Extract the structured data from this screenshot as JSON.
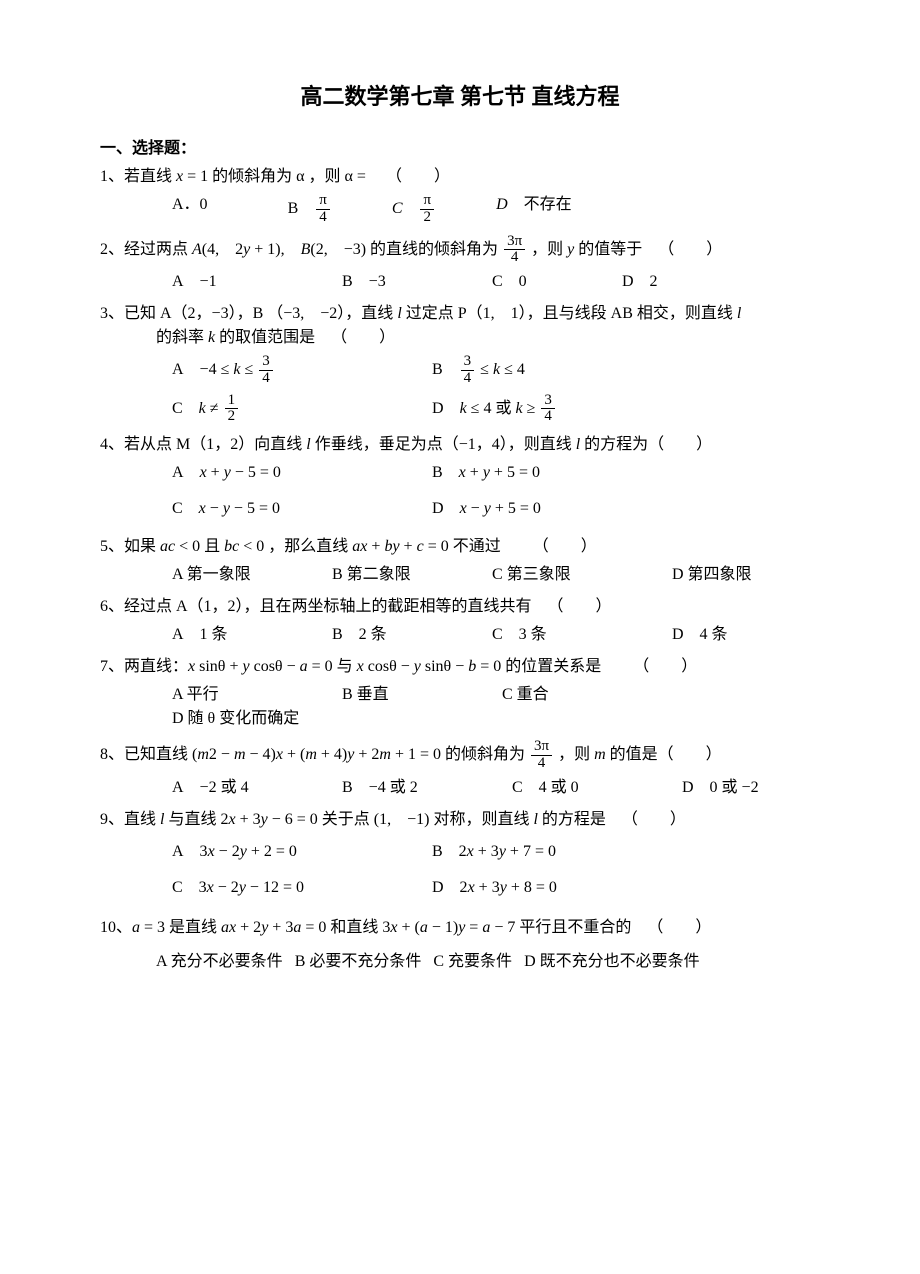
{
  "title": "高二数学第七章 第七节 直线方程",
  "section1_heading": "一、选择题：",
  "q1": {
    "stem": "1、若直线 <span class='it'>x</span> = 1 的倾斜角为 α ，则 α =  （  ）",
    "A": "A．0",
    "B": "B <span class='frac'><span class='n'>π</span><span class='d'>4</span></span>",
    "C": "<span class='it'>C</span> <span class='frac'><span class='n'>π</span><span class='d'>2</span></span>",
    "D": "<span class='it'>D</span> 不存在"
  },
  "q2": {
    "stem": "2、经过两点 <span class='it'>A</span>(4, 2<span class='it'>y</span> + 1), <span class='it'>B</span>(2, −3) 的直线的倾斜角为 <span class='frac'><span class='n'>3π</span><span class='d'>4</span></span> ，则 <span class='it'>y</span> 的值等于 （  ）",
    "A": "A −1",
    "B": "B −3",
    "C": "C 0",
    "D": "D 2"
  },
  "q3": {
    "stem1": "3、已知 A（2，−3），B （−3, −2），直线 <span class='it'>l</span> 过定点 P（1, 1），且与线段 AB 相交，则直线 <span class='it'>l</span>",
    "stem2": "的斜率 <span class='it'>k</span> 的取值范围是 （  ）",
    "A": "A −4 ≤ <span class='it'>k</span> ≤ <span class='frac'><span class='n'>3</span><span class='d'>4</span></span>",
    "B": "B <span class='frac'><span class='n'>3</span><span class='d'>4</span></span> ≤ <span class='it'>k</span> ≤ 4",
    "C": "C <span class='it'>k</span> ≠ <span class='frac'><span class='n'>1</span><span class='d'>2</span></span>",
    "D": "D <span class='it'>k</span> ≤ 4 或 <span class='it'>k</span> ≥ <span class='frac'><span class='n'>3</span><span class='d'>4</span></span>"
  },
  "q4": {
    "stem": "4、若从点 M（1，2）向直线 <span class='it'>l</span> 作垂线，垂足为点（−1，4），则直线 <span class='it'>l</span> 的方程为（  ）",
    "A": "A <span class='it'>x</span> + <span class='it'>y</span> − 5 = 0",
    "B": "B <span class='it'>x</span> + <span class='it'>y</span> + 5 = 0",
    "C": "C <span class='it'>x</span> − <span class='it'>y</span> − 5 = 0",
    "D": "D <span class='it'>x</span> − <span class='it'>y</span> + 5 = 0"
  },
  "q5": {
    "stem": "5、如果 <span class='it'>ac</span> &lt; 0 且 <span class='it'>bc</span> &lt; 0 ，那么直线 <span class='it'>ax</span> + <span class='it'>by</span> + <span class='it'>c</span> = 0 不通过  （  ）",
    "A": "A 第一象限",
    "B": "B 第二象限",
    "C": "C 第三象限",
    "D": "D 第四象限"
  },
  "q6": {
    "stem": "6、经过点 A（1，2），且在两坐标轴上的截距相等的直线共有 （  ）",
    "A": "A 1 条",
    "B": "B 2 条",
    "C": "C 3 条",
    "D": "D 4 条"
  },
  "q7": {
    "stem": "7、两直线：<span class='it'>x</span> sinθ + <span class='it'>y</span> cosθ − <span class='it'>a</span> = 0 与 <span class='it'>x</span> cosθ − <span class='it'>y</span> sinθ − <span class='it'>b</span> = 0 的位置关系是  （  ）",
    "A": "A 平行",
    "B": "B 垂直",
    "C": "C 重合",
    "D": "D 随 θ 变化而确定"
  },
  "q8": {
    "stem": "8、已知直线 (<span class='it'>m</span>2 − <span class='it'>m</span> − 4)<span class='it'>x</span> + (<span class='it'>m</span> + 4)<span class='it'>y</span> + 2<span class='it'>m</span> + 1 = 0 的倾斜角为 <span class='frac'><span class='n'>3π</span><span class='d'>4</span></span> ，则 <span class='it'>m</span> 的值是（  ）",
    "A": "A −2 或 4",
    "B": "B −4 或 2",
    "C": "C 4 或 0",
    "D": "D 0 或 −2"
  },
  "q9": {
    "stem": "9、直线 <span class='it'>l</span> 与直线 2<span class='it'>x</span> + 3<span class='it'>y</span> − 6 = 0 关于点 (1, −1) 对称，则直线 <span class='it'>l</span> 的方程是 （  ）",
    "A": "A 3<span class='it'>x</span> − 2<span class='it'>y</span> + 2 = 0",
    "B": "B 2<span class='it'>x</span> + 3<span class='it'>y</span> + 7 = 0",
    "C": "C 3<span class='it'>x</span> − 2<span class='it'>y</span> − 12 = 0",
    "D": "D 2<span class='it'>x</span> + 3<span class='it'>y</span> + 8 = 0"
  },
  "q10": {
    "stem": "10、<span class='it'>a</span> = 3 是直线 <span class='it'>ax</span> + 2<span class='it'>y</span> + 3<span class='it'>a</span> = 0 和直线 3<span class='it'>x</span> + (<span class='it'>a</span> − 1)<span class='it'>y</span> = <span class='it'>a</span> − 7 平行且不重合的 （  ）",
    "A": "A 充分不必要条件",
    "B": "B 必要不充分条件",
    "C": "C 充要条件",
    "D": "D 既不充分也不必要条件"
  }
}
